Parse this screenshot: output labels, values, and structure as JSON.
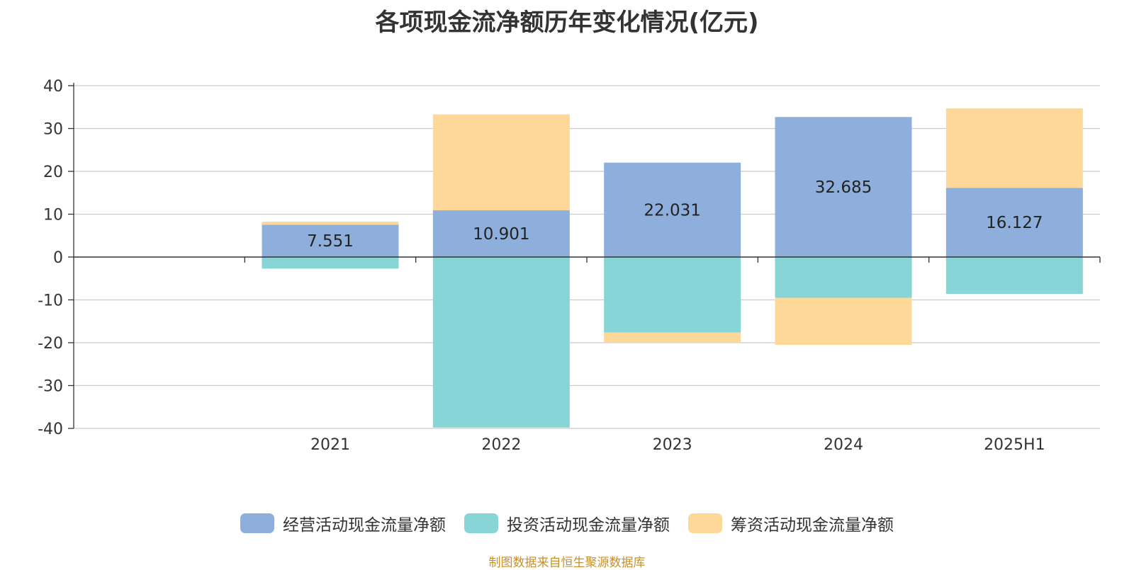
{
  "chart_data": {
    "type": "bar",
    "stacked": true,
    "title": "各项现金流净额历年变化情况(亿元)",
    "categories": [
      "2021",
      "2022",
      "2023",
      "2024",
      "2025H1"
    ],
    "ylim": [
      -40,
      40
    ],
    "yticks": [
      40,
      30,
      20,
      10,
      0,
      -10,
      -20,
      -30,
      -40
    ],
    "grid": true,
    "legend_position": "bottom",
    "series": [
      {
        "name": "经营活动现金流量净额",
        "color": "#8eaedb",
        "values": [
          7.551,
          10.901,
          22.031,
          32.685,
          16.127
        ],
        "labels": [
          "7.551",
          "10.901",
          "22.031",
          "32.685",
          "16.127"
        ]
      },
      {
        "name": "投资活动现金流量净额",
        "color": "#88d5d8",
        "values": [
          -2.7,
          -39.8,
          -17.6,
          -9.5,
          -8.6
        ]
      },
      {
        "name": "筹资活动现金流量净额",
        "color": "#fdd898",
        "values": [
          0.7,
          22.4,
          -2.4,
          -11.0,
          18.6
        ]
      }
    ]
  },
  "source": "制图数据来自恒生聚源数据库"
}
